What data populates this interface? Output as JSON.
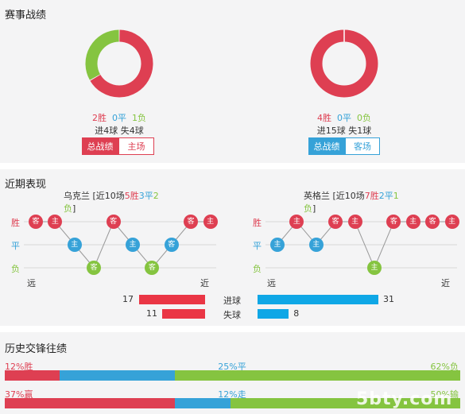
{
  "colors": {
    "red": "#de3f52",
    "blue": "#36a2d8",
    "green": "#85c440",
    "bar_red": "#ea3645",
    "bar_blue": "#0fa7e6",
    "gray_line": "#d8d8d8"
  },
  "record": {
    "title": "赛事战绩",
    "left": {
      "win": 2,
      "draw": 0,
      "loss": 1,
      "win_label": "2胜",
      "draw_label": "0平",
      "loss_label": "1负",
      "goals": "进4球  失4球",
      "tabs": [
        "总战绩",
        "主场"
      ],
      "active_tab": 0
    },
    "right": {
      "win": 4,
      "draw": 0,
      "loss": 0,
      "win_label": "4胜",
      "draw_label": "0平",
      "loss_label": "0负",
      "goals": "进15球  失1球",
      "tabs": [
        "总战绩",
        "客场"
      ],
      "active_tab": 0
    }
  },
  "recent": {
    "title": "近期表现",
    "row_labels": [
      "胜",
      "平",
      "负"
    ],
    "far_label": "远",
    "near_label": "近",
    "left": {
      "team": "乌克兰",
      "sum_prefix": " [近10场",
      "wins": "5胜",
      "draws": "3平",
      "losses": "2负",
      "sum_suffix": "]",
      "results": [
        {
          "r": "W",
          "v": "客"
        },
        {
          "r": "W",
          "v": "主"
        },
        {
          "r": "D",
          "v": "主"
        },
        {
          "r": "L",
          "v": "客"
        },
        {
          "r": "W",
          "v": "客"
        },
        {
          "r": "D",
          "v": "主"
        },
        {
          "r": "L",
          "v": "客"
        },
        {
          "r": "D",
          "v": "客"
        },
        {
          "r": "W",
          "v": "客"
        },
        {
          "r": "W",
          "v": "主"
        }
      ]
    },
    "right": {
      "team": "英格兰",
      "sum_prefix": " [近10场",
      "wins": "7胜",
      "draws": "2平",
      "losses": "1负",
      "sum_suffix": "]",
      "results": [
        {
          "r": "D",
          "v": "主"
        },
        {
          "r": "W",
          "v": "主"
        },
        {
          "r": "D",
          "v": "主"
        },
        {
          "r": "W",
          "v": "客"
        },
        {
          "r": "W",
          "v": "主"
        },
        {
          "r": "L",
          "v": "主"
        },
        {
          "r": "W",
          "v": "客"
        },
        {
          "r": "W",
          "v": "主"
        },
        {
          "r": "W",
          "v": "客"
        },
        {
          "r": "W",
          "v": "主"
        }
      ]
    },
    "stats": [
      {
        "label": "进球",
        "left": 17,
        "right": 31
      },
      {
        "label": "失球",
        "left": 11,
        "right": 8
      }
    ]
  },
  "history": {
    "title": "历史交锋往绩",
    "rows": [
      {
        "a": "12%胜",
        "b": "25%平",
        "c": "62%负",
        "pa": 12,
        "pb": 25,
        "pc": 62
      },
      {
        "a": "37%赢",
        "b": "12%走",
        "c": "50%输",
        "pa": 37,
        "pb": 12,
        "pc": 50
      }
    ],
    "watermark": "5bty.com"
  }
}
